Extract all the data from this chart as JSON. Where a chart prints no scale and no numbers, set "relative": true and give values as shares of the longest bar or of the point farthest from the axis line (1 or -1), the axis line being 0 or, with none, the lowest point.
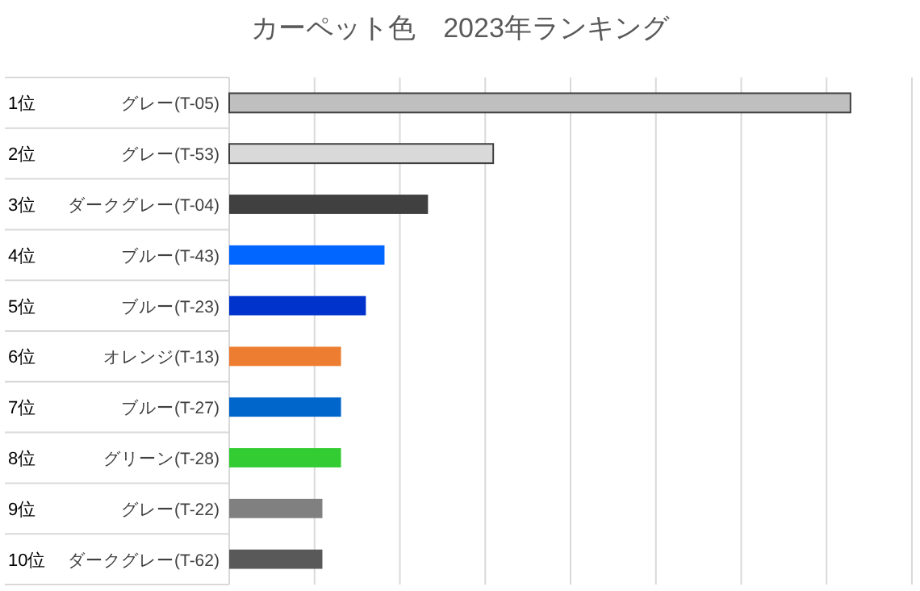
{
  "chart_data": {
    "type": "bar",
    "orientation": "horizontal",
    "relative": true,
    "title": "カーペット色　2023年ランキング",
    "categories": [
      "1位 グレー(T-05)",
      "2位 グレー(T-53)",
      "3位 ダークグレー(T-04)",
      "4位 ブルー(T-43)",
      "5位 ブルー(T-23)",
      "6位 オレンジ(T-13)",
      "7位 ブルー(T-27)",
      "8位 グリーン(T-28)",
      "9位 グレー(T-22)",
      "10位 ダークグレー(T-62)"
    ],
    "values": [
      1,
      0.425,
      0.32,
      0.25,
      0.22,
      0.18,
      0.18,
      0.18,
      0.15,
      0.15
    ],
    "colors": [
      "#bfbfbf",
      "#d9d9d9",
      "#404040",
      "#0066ff",
      "#0033cc",
      "#ed7d31",
      "#0066cc",
      "#33cc33",
      "#808080",
      "#595959"
    ],
    "grid": "x"
  }
}
